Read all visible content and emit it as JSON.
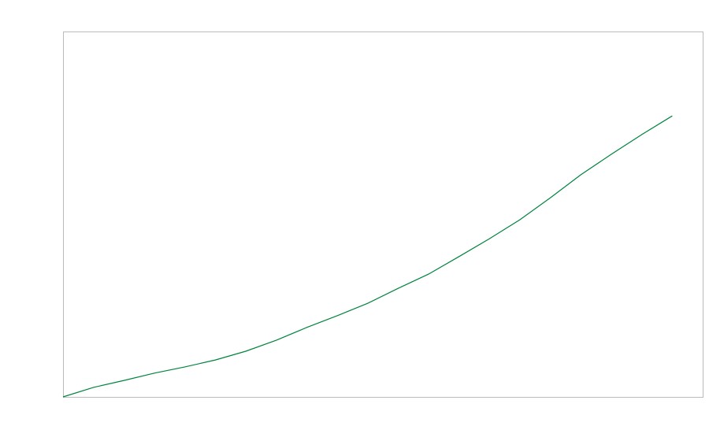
{
  "chart_data": {
    "type": "line",
    "title": "",
    "xlabel": "",
    "ylabel": "",
    "x": [
      0,
      1,
      2,
      3,
      4,
      5,
      6,
      7,
      8,
      9,
      10,
      11,
      12,
      13,
      14,
      15,
      16,
      17,
      18,
      19,
      20
    ],
    "series": [
      {
        "values": [
          0,
          2.6,
          4.5,
          6.5,
          8.2,
          10.1,
          12.5,
          15.5,
          19.0,
          22.2,
          25.6,
          29.7,
          33.6,
          38.4,
          43.3,
          48.5,
          54.5,
          60.8,
          66.4,
          71.8,
          76.9
        ]
      }
    ],
    "xlim": [
      0,
      21
    ],
    "ylim": [
      0,
      100
    ],
    "grid": false,
    "tick_labels_visible": false,
    "colors": {
      "line": "#00843d",
      "frame": "#bbbbbb"
    }
  }
}
